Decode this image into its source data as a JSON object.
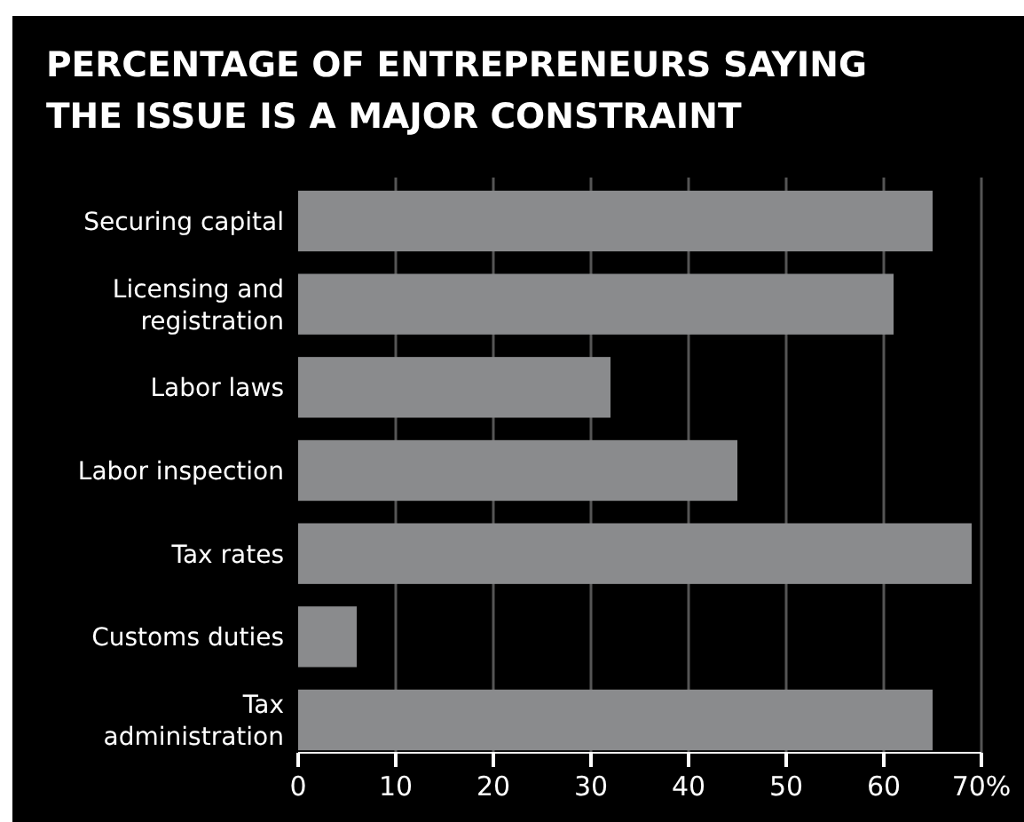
{
  "chart_data": {
    "type": "bar",
    "orientation": "horizontal",
    "title": "PERCENTAGE OF ENTREPRENEURS SAYING THE ISSUE IS A MAJOR CONSTRAINT",
    "categories": [
      "Securing capital",
      "Licensing and registration",
      "Labor laws",
      "Labor inspection",
      "Tax rates",
      "Customs duties",
      "Tax administration"
    ],
    "values": [
      65,
      61,
      32,
      45,
      69,
      6,
      65
    ],
    "color": "#8a8b8d",
    "xlim": [
      0,
      70
    ],
    "xticks": [
      0,
      10,
      20,
      30,
      40,
      50,
      60,
      {
        "value": 70,
        "label": "70%"
      }
    ],
    "grid": "x"
  }
}
